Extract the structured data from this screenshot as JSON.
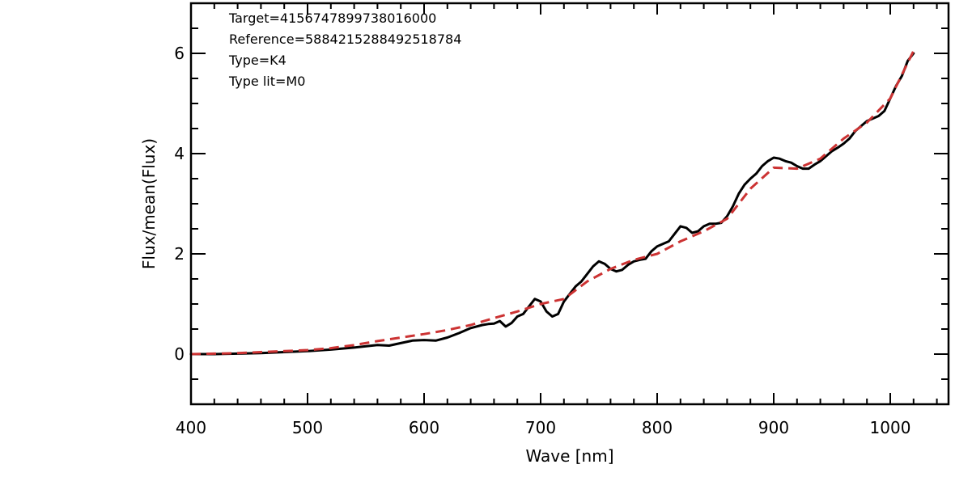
{
  "chart_data": {
    "type": "line",
    "xlabel": "Wave [nm]",
    "ylabel": "Flux/mean(Flux)",
    "xlim": [
      400,
      1050
    ],
    "ylim": [
      -1,
      7
    ],
    "x_ticks": [
      400,
      500,
      600,
      700,
      800,
      900,
      1000
    ],
    "y_ticks": [
      0,
      2,
      4,
      6
    ],
    "grid": false,
    "annotations": [
      "Target=4156747899738016000",
      "Reference=5884215288492518784",
      "Type=K4",
      "Type lit=M0"
    ],
    "colors": {
      "target": "#000000",
      "reference": "#cc3333"
    },
    "series": [
      {
        "style": "solid",
        "x": [
          400,
          420,
          440,
          460,
          480,
          500,
          520,
          540,
          560,
          570,
          580,
          590,
          600,
          610,
          620,
          630,
          640,
          650,
          655,
          660,
          665,
          670,
          675,
          680,
          685,
          690,
          695,
          700,
          705,
          710,
          715,
          720,
          725,
          730,
          735,
          740,
          745,
          750,
          755,
          760,
          765,
          770,
          775,
          780,
          785,
          790,
          795,
          800,
          805,
          810,
          815,
          820,
          825,
          830,
          835,
          840,
          845,
          850,
          855,
          860,
          865,
          870,
          875,
          880,
          885,
          890,
          895,
          900,
          905,
          910,
          915,
          920,
          925,
          930,
          935,
          940,
          945,
          950,
          955,
          960,
          965,
          970,
          975,
          980,
          985,
          990,
          995,
          1000,
          1005,
          1010,
          1015,
          1020
        ],
        "y": [
          0.0,
          0.0,
          0.01,
          0.02,
          0.04,
          0.06,
          0.09,
          0.13,
          0.18,
          0.17,
          0.22,
          0.27,
          0.28,
          0.27,
          0.33,
          0.42,
          0.52,
          0.58,
          0.6,
          0.61,
          0.66,
          0.55,
          0.62,
          0.75,
          0.8,
          0.95,
          1.1,
          1.05,
          0.85,
          0.75,
          0.8,
          1.05,
          1.2,
          1.35,
          1.45,
          1.6,
          1.75,
          1.85,
          1.8,
          1.7,
          1.65,
          1.68,
          1.78,
          1.85,
          1.88,
          1.9,
          2.05,
          2.15,
          2.2,
          2.25,
          2.4,
          2.55,
          2.52,
          2.42,
          2.45,
          2.55,
          2.6,
          2.6,
          2.62,
          2.75,
          2.95,
          3.2,
          3.38,
          3.5,
          3.6,
          3.75,
          3.85,
          3.92,
          3.9,
          3.85,
          3.82,
          3.75,
          3.7,
          3.7,
          3.78,
          3.85,
          3.95,
          4.05,
          4.12,
          4.2,
          4.3,
          4.45,
          4.55,
          4.65,
          4.7,
          4.75,
          4.85,
          5.1,
          5.35,
          5.55,
          5.85,
          6.0
        ]
      },
      {
        "style": "dashed",
        "x": [
          400,
          420,
          440,
          460,
          480,
          500,
          520,
          540,
          560,
          580,
          600,
          620,
          640,
          660,
          680,
          700,
          720,
          740,
          760,
          780,
          800,
          820,
          840,
          860,
          880,
          900,
          920,
          940,
          960,
          980,
          1000,
          1020
        ],
        "y": [
          0.0,
          0.01,
          0.02,
          0.04,
          0.06,
          0.08,
          0.12,
          0.18,
          0.26,
          0.33,
          0.4,
          0.48,
          0.58,
          0.72,
          0.85,
          1.0,
          1.1,
          1.45,
          1.7,
          1.88,
          2.0,
          2.25,
          2.45,
          2.7,
          3.3,
          3.72,
          3.7,
          3.9,
          4.3,
          4.62,
          5.1,
          6.05
        ]
      }
    ]
  }
}
